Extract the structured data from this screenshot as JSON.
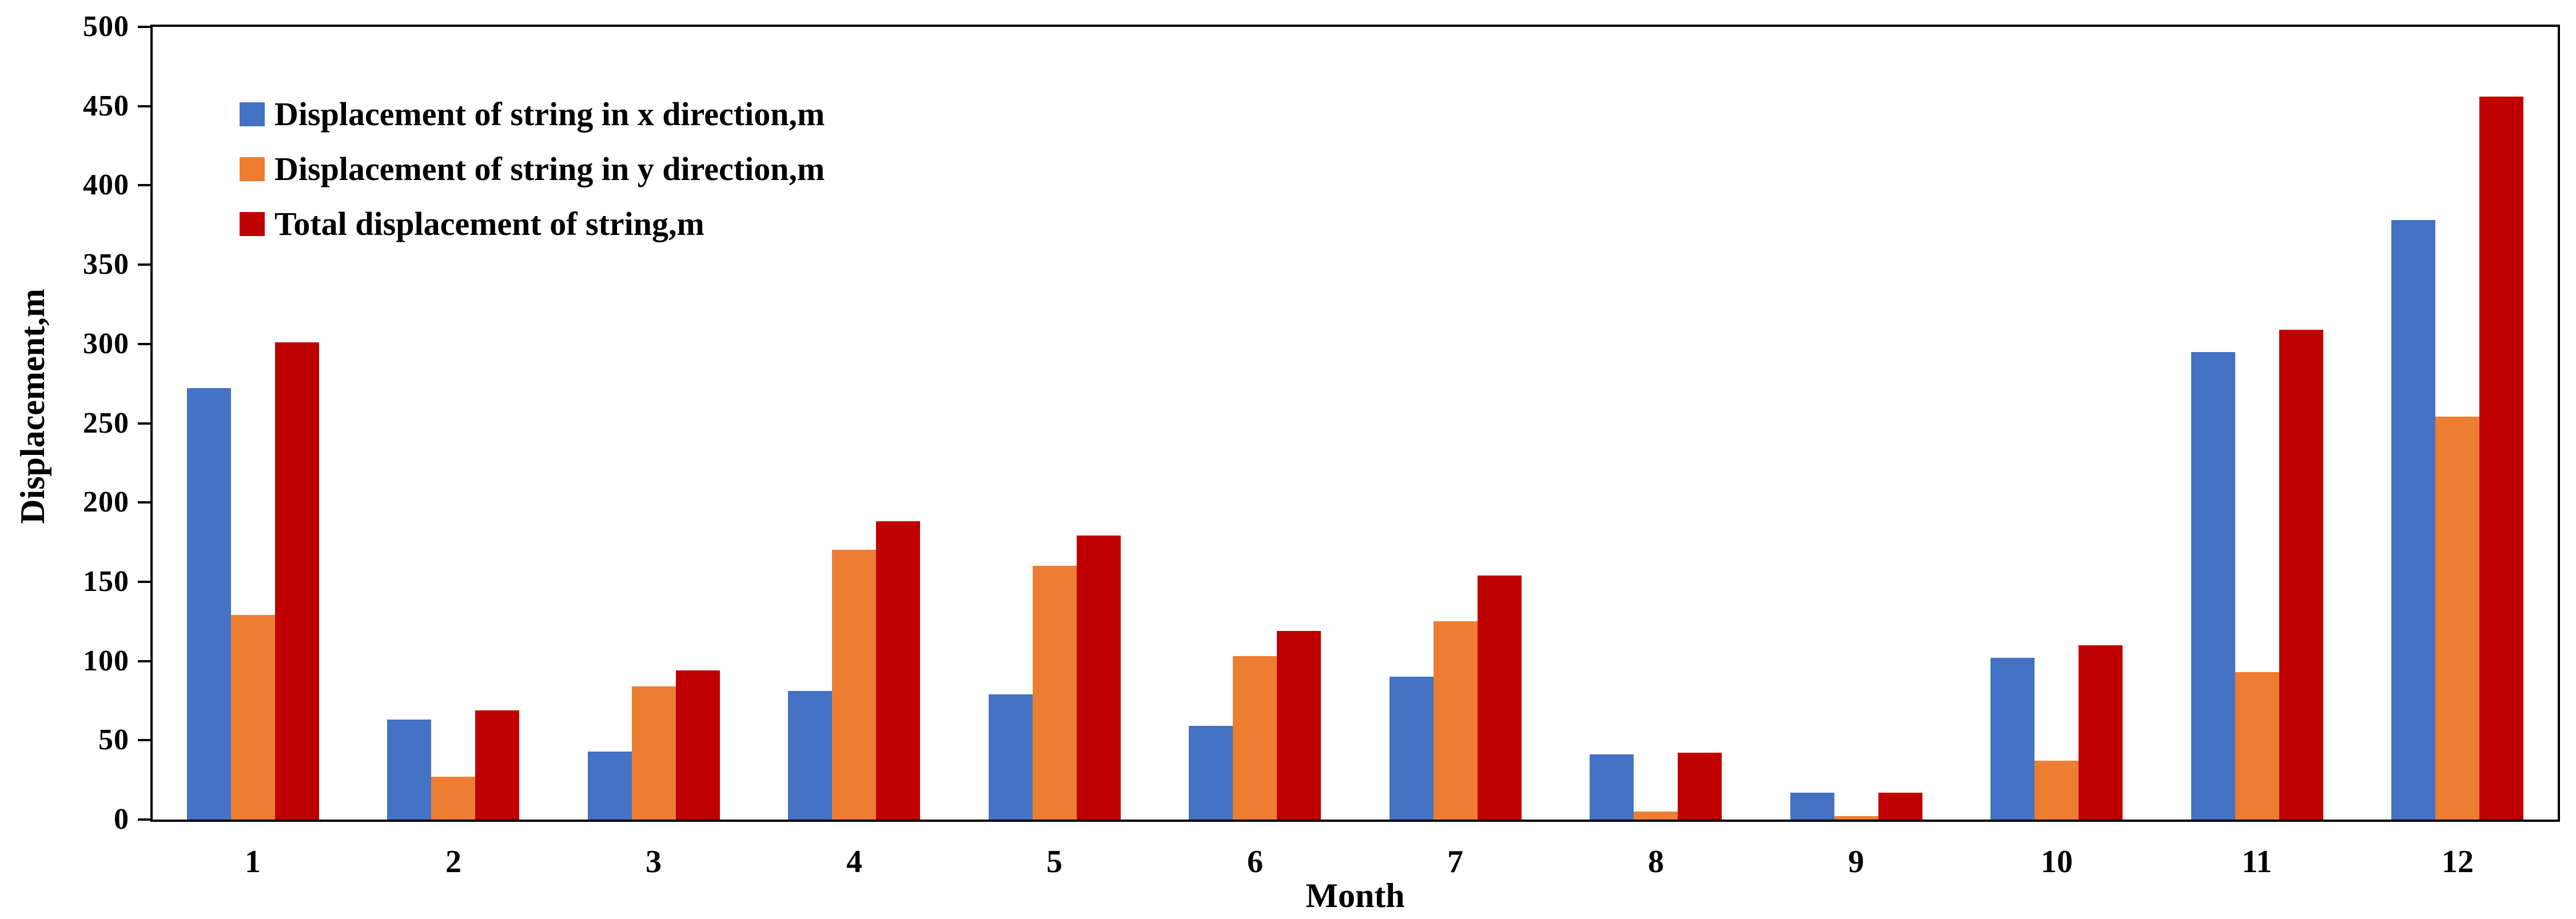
{
  "figure": {
    "background": "#FFFFFF",
    "axis_color": "#000000",
    "text_color": "#000000"
  },
  "chart_data": {
    "type": "bar",
    "title": "",
    "xlabel": "Month",
    "ylabel": "Displacement,m",
    "categories": [
      "1",
      "2",
      "3",
      "4",
      "5",
      "6",
      "7",
      "8",
      "9",
      "10",
      "11",
      "12"
    ],
    "series": [
      {
        "name": "Displacement of string in x direction,m",
        "color": "#4472C4",
        "values": [
          272,
          63,
          43,
          81,
          79,
          59,
          90,
          41,
          17,
          102,
          295,
          378
        ]
      },
      {
        "name": "Displacement of string in y direction,m",
        "color": "#ED7D31",
        "values": [
          129,
          27,
          84,
          170,
          160,
          103,
          125,
          5,
          2,
          37,
          93,
          254
        ]
      },
      {
        "name": "Total displacement of string,m",
        "color": "#C00000",
        "values": [
          301,
          69,
          94,
          188,
          179,
          119,
          154,
          42,
          17,
          110,
          309,
          456
        ]
      }
    ],
    "ylim": [
      0,
      500
    ],
    "yticks": [
      0,
      50,
      100,
      150,
      200,
      250,
      300,
      350,
      400,
      450,
      500
    ],
    "grid": false,
    "legend_position": "top-left-inside",
    "plot_frame": "full-box"
  }
}
